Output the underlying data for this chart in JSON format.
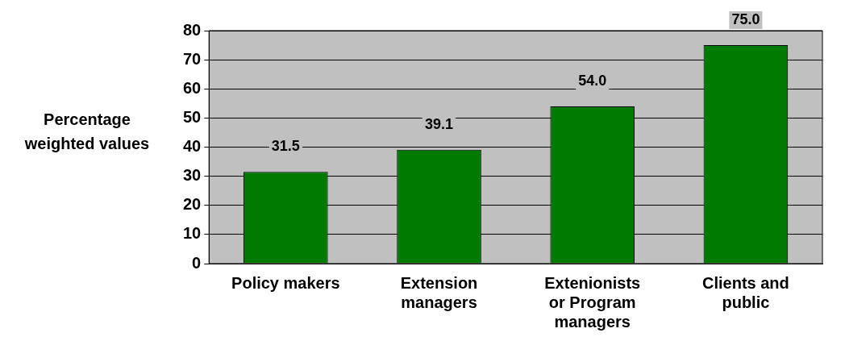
{
  "chart_data": {
    "type": "bar",
    "ylabel": "Percentage weighted values",
    "categories": [
      "Policy makers",
      "Extension managers",
      "Extenionists or Program managers",
      "Clients and public"
    ],
    "values": [
      31.5,
      39.1,
      54.0,
      75.0
    ],
    "color": "#007a00",
    "value_labels": [
      "31.5",
      "39.1",
      "54.0",
      "75.0"
    ],
    "ylim": [
      0,
      80
    ],
    "yticks": [
      0,
      10,
      20,
      30,
      40,
      50,
      60,
      70,
      80
    ],
    "grid": "y",
    "legend": false
  }
}
